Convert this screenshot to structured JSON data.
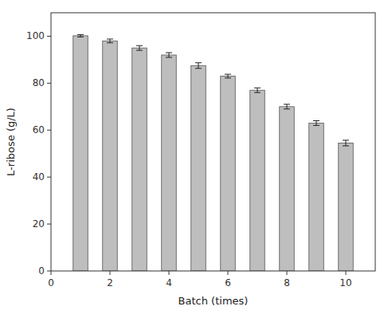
{
  "chart_data": {
    "type": "bar",
    "xlabel": "Batch (times)",
    "ylabel": "L-ribose (g/L)",
    "x": [
      1,
      2,
      3,
      4,
      5,
      6,
      7,
      8,
      9,
      10
    ],
    "values": [
      100.2,
      98.0,
      95.0,
      92.0,
      87.5,
      83.0,
      77.0,
      70.0,
      63.0,
      54.5
    ],
    "errors": [
      0.5,
      0.8,
      1.0,
      1.0,
      1.2,
      0.8,
      1.0,
      1.0,
      1.0,
      1.2
    ],
    "color": "#BEBEBE",
    "xlim": [
      0,
      11
    ],
    "ylim": [
      0,
      110
    ],
    "xticks": [
      0,
      2,
      4,
      6,
      8,
      10
    ],
    "yticks": [
      0,
      20,
      40,
      60,
      80,
      100
    ],
    "grid": false
  }
}
